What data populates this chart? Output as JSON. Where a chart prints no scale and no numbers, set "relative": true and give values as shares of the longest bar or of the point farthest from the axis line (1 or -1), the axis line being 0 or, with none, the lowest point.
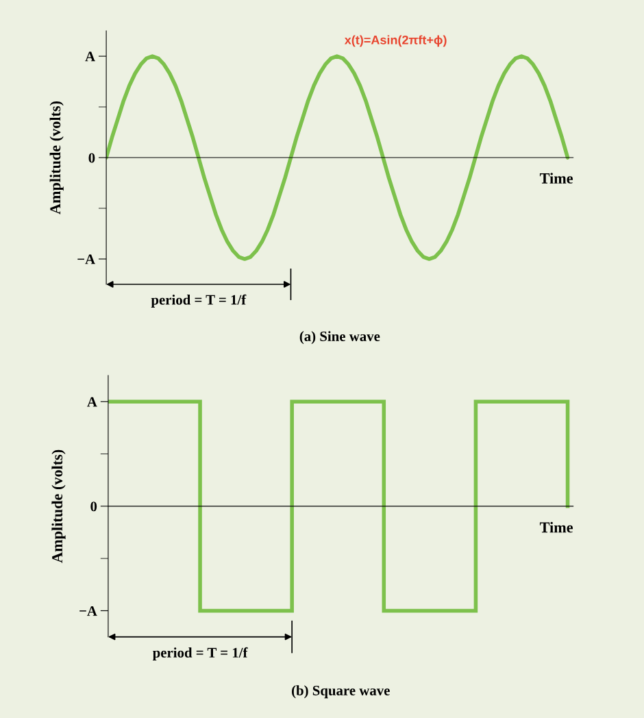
{
  "chart_data": [
    {
      "type": "line",
      "title": "(a) Sine wave",
      "xlabel": "Time",
      "ylabel": "Amplitude (volts)",
      "categories": [
        null,
        null,
        null,
        null,
        null,
        null,
        null,
        null,
        null,
        null,
        null,
        null,
        null,
        null,
        null,
        null,
        null,
        null,
        null,
        null,
        null,
        null,
        null,
        null,
        null,
        null,
        null,
        null,
        null,
        null,
        null,
        null,
        null,
        null,
        null,
        null,
        null,
        null,
        null,
        null,
        null,
        null,
        null,
        null,
        null,
        null,
        null,
        null,
        null,
        null,
        null,
        null,
        null,
        null,
        null,
        null,
        null,
        null,
        null,
        null,
        null,
        null,
        null,
        null,
        null,
        null,
        null,
        null,
        null,
        null,
        null,
        null,
        null,
        null,
        null,
        null,
        null,
        null,
        null,
        null,
        null
      ],
      "series": [
        {
          "color": "#7dc14c",
          "values": [
            0,
            0.2,
            0.38,
            0.56,
            0.71,
            0.83,
            0.92,
            0.98,
            1,
            0.98,
            0.92,
            0.83,
            0.71,
            0.56,
            0.38,
            0.2,
            0,
            -0.2,
            -0.38,
            -0.56,
            -0.71,
            -0.83,
            -0.92,
            -0.98,
            -1,
            -0.98,
            -0.92,
            -0.83,
            -0.71,
            -0.56,
            -0.38,
            -0.2,
            0,
            0.2,
            0.38,
            0.56,
            0.71,
            0.83,
            0.92,
            0.98,
            1,
            0.98,
            0.92,
            0.83,
            0.71,
            0.56,
            0.38,
            0.2,
            0,
            -0.2,
            -0.38,
            -0.56,
            -0.71,
            -0.83,
            -0.92,
            -0.98,
            -1,
            -0.98,
            -0.92,
            -0.83,
            -0.71,
            -0.56,
            -0.38,
            -0.2,
            0,
            0.2,
            0.38,
            0.56,
            0.71,
            0.83,
            0.92,
            0.98,
            1,
            0.98,
            0.92,
            0.83,
            0.71,
            0.56,
            0.38,
            0.2,
            0
          ]
        }
      ],
      "relative": true,
      "annotations": [
        "x(t)=Asin(2πft+ϕ)",
        "period = T = 1/f",
        "A",
        "0",
        "−A"
      ],
      "grid": false
    },
    {
      "type": "step",
      "title": "(b) Square wave",
      "xlabel": "Time",
      "ylabel": "Amplitude (volts)",
      "categories": [
        null,
        null,
        null,
        null,
        null,
        null
      ],
      "series": [
        {
          "color": "#7dc14c",
          "values": [
            1,
            -1,
            1,
            -1,
            1,
            0
          ]
        }
      ],
      "relative": true,
      "annotations": [
        "period = T = 1/f",
        "A",
        "0",
        "−A"
      ],
      "grid": false
    }
  ]
}
